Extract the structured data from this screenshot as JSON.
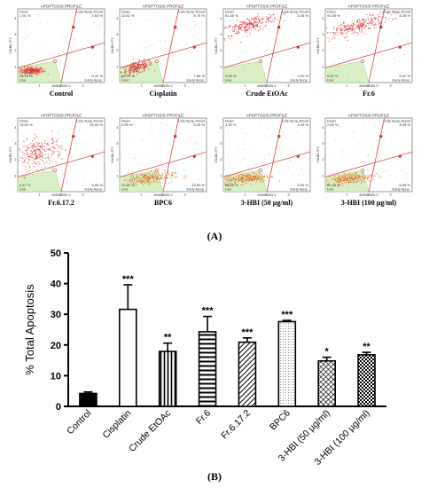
{
  "panel_a": {
    "label": "(A)",
    "plot_title": "APOPTOSIS PROFILE",
    "x_axis": "ANNEXIN V",
    "y_axis": "VIABILITY",
    "quadrants": {
      "dead": "Dead",
      "late": "Late Apop./Dead",
      "live": "Live",
      "early": "Early Apop."
    },
    "y_ticks": [
      "1",
      "2",
      "3",
      "4"
    ],
    "x_ticks": [
      "1",
      "2",
      "3"
    ],
    "plots": [
      {
        "name": "Control",
        "dead": "1.91 %",
        "late": "2.83 %",
        "live": "95.16 %",
        "early": "0.10 %",
        "cluster": [
          0.16,
          0.16
        ],
        "spread": [
          0.07,
          0.025
        ],
        "tilt": 0.0,
        "n": 220,
        "region": "live",
        "color": "#e03030"
      },
      {
        "name": "Cisplatin",
        "dead": "10.62 %",
        "late": "8.76 %",
        "live": "66.75 %",
        "early": "7.86 %",
        "cluster": [
          0.2,
          0.2
        ],
        "spread": [
          0.09,
          0.04
        ],
        "tilt": 0.3,
        "n": 200,
        "region": "live",
        "color": "#e03030"
      },
      {
        "name": "Crude EtOAc",
        "dead": "91.65 %",
        "late": "8.35 %",
        "live": "0.00 %",
        "early": "0.00 %",
        "cluster": [
          0.3,
          0.78
        ],
        "spread": [
          0.17,
          0.05
        ],
        "tilt": 0.35,
        "n": 240,
        "region": "dead",
        "color": "#e03030"
      },
      {
        "name": "Fr.6",
        "dead": "91.65 %",
        "late": "8.35 %",
        "live": "0.00 %",
        "early": "0.00 %",
        "cluster": [
          0.35,
          0.76
        ],
        "spread": [
          0.2,
          0.05
        ],
        "tilt": 0.35,
        "n": 260,
        "region": "dead",
        "color": "#e03030"
      },
      {
        "name": "Fr.6.17.2",
        "dead": "78.62 %",
        "late": "20.65 %",
        "live": "0.47 %",
        "early": "0.06 %",
        "cluster": [
          0.25,
          0.52
        ],
        "spread": [
          0.13,
          0.1
        ],
        "tilt": 0.25,
        "n": 230,
        "region": "dead",
        "color": "#e03030"
      },
      {
        "name": "BPC6",
        "dead": "0.55 %",
        "late": "5.25 %",
        "live": "70.61 %",
        "early": "23.59 %",
        "cluster": [
          0.32,
          0.18
        ],
        "spread": [
          0.15,
          0.04
        ],
        "tilt": 0.1,
        "n": 240,
        "region": "live",
        "color": "#e07020"
      },
      {
        "name": "3-HBI (50 µg/ml)",
        "dead": "1.92 %",
        "late": "4.43 %",
        "live": "86.66 %",
        "early": "6.99 %",
        "cluster": [
          0.28,
          0.18
        ],
        "spread": [
          0.13,
          0.035
        ],
        "tilt": 0.1,
        "n": 230,
        "region": "live",
        "color": "#e07020"
      },
      {
        "name": "3-HBI (100 µg/ml)",
        "dead": "2.62 %",
        "late": "8.93 %",
        "live": "81.36 %",
        "early": "6.99 %",
        "cluster": [
          0.28,
          0.18
        ],
        "spread": [
          0.13,
          0.035
        ],
        "tilt": 0.1,
        "n": 230,
        "region": "live",
        "color": "#e07020"
      }
    ]
  },
  "chart_data": {
    "label": "(B)",
    "type": "bar",
    "ylabel": "% Total Apoptosis",
    "ylim": [
      0,
      50
    ],
    "yticks": [
      0,
      10,
      20,
      30,
      40,
      50
    ],
    "categories": [
      "Control",
      "Cisplatin",
      "Crude EtOAc",
      "Fr.6",
      "Fr.6.17.2",
      "BPC6",
      "3-HBI (50 µg/ml)",
      "3-HBI (100 µg/ml)"
    ],
    "values": [
      4.2,
      31.6,
      17.9,
      24.3,
      20.9,
      27.6,
      14.8,
      16.8
    ],
    "errors": [
      0.5,
      8.0,
      2.7,
      5.0,
      1.4,
      0.4,
      1.2,
      0.8
    ],
    "significance": [
      "",
      "***",
      "**",
      "***",
      "***",
      "***",
      "*",
      "**"
    ],
    "patterns": [
      "solid",
      "white",
      "vlines",
      "hlines",
      "diag",
      "dots",
      "cross",
      "check"
    ]
  }
}
